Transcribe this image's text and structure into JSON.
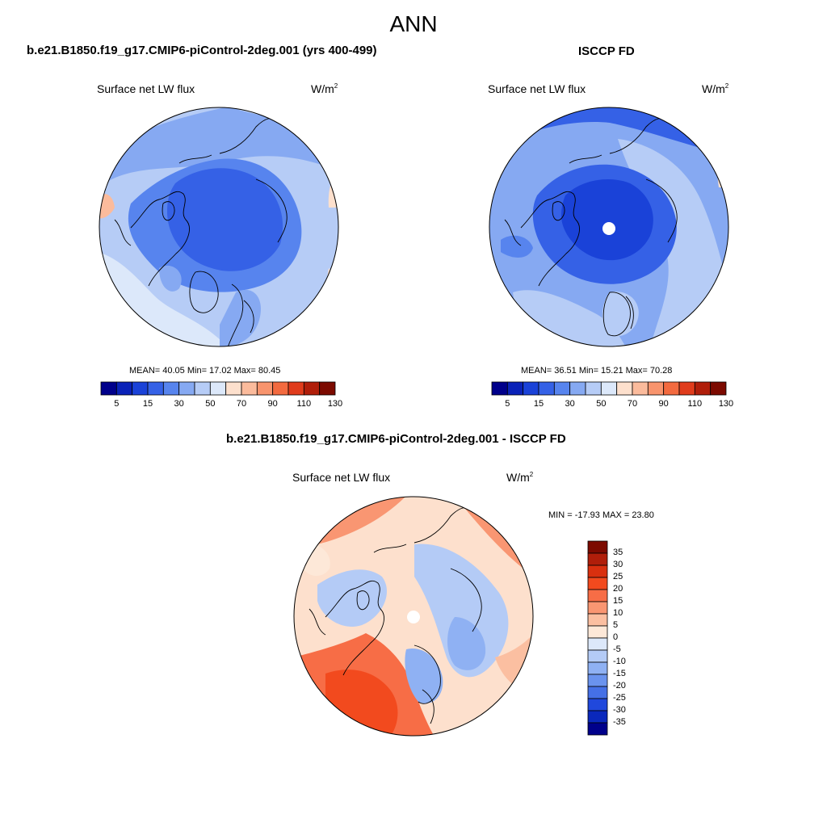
{
  "figure": {
    "title": "ANN"
  },
  "panels": [
    {
      "id": "model",
      "title": "b.e21.B1850.f19_g17.CMIP6-piControl-2deg.001 (yrs 400-499)",
      "variable": "Surface net LW flux",
      "units": "W/m",
      "units_sup": "2",
      "stats": "MEAN=  40.05  Min=  17.02  Max=  80.45",
      "colorbar_labels": [
        "5",
        "15",
        "30",
        "50",
        "70",
        "90",
        "110",
        "130"
      ]
    },
    {
      "id": "obs",
      "title": "ISCCP FD",
      "variable": "Surface net LW flux",
      "units": "W/m",
      "units_sup": "2",
      "stats": "MEAN=  36.51  Min=  15.21  Max=  70.28",
      "colorbar_labels": [
        "5",
        "15",
        "30",
        "50",
        "70",
        "90",
        "110",
        "130"
      ]
    },
    {
      "id": "diff",
      "title": "b.e21.B1850.f19_g17.CMIP6-piControl-2deg.001 - ISCCP FD",
      "variable": "Surface net LW flux",
      "units": "W/m",
      "units_sup": "2",
      "stats": "MIN = -17.93 MAX =  23.80",
      "colorbar_labels": [
        "35",
        "30",
        "25",
        "20",
        "15",
        "10",
        "5",
        "0",
        "-5",
        "-10",
        "-15",
        "-20",
        "-25",
        "-30",
        "-35"
      ]
    }
  ],
  "colors": {
    "abs_scale": [
      "#00008b",
      "#0a22b8",
      "#1a42d8",
      "#3561e6",
      "#5784ee",
      "#86a9f2",
      "#b6ccf6",
      "#dce8fa",
      "#fde0cd",
      "#fbbb9c",
      "#f8946d",
      "#f36a3f",
      "#e03c1c",
      "#b01e0a",
      "#7c0a00"
    ],
    "diff_scale": [
      "#7c0a00",
      "#b01e0a",
      "#d9300f",
      "#f24a1e",
      "#f76d46",
      "#f99672",
      "#fbbfa1",
      "#fde8d8",
      "#dce8fa",
      "#b4cbf6",
      "#8fb1f3",
      "#6a93ee",
      "#4570e6",
      "#2048dc",
      "#0a28bc",
      "#00008b"
    ],
    "map_bg_model": "#b6ccf6",
    "map_bg_obs": "#86a9f2",
    "map_bg_diff": "#fde0cd",
    "coast": "#000000"
  }
}
